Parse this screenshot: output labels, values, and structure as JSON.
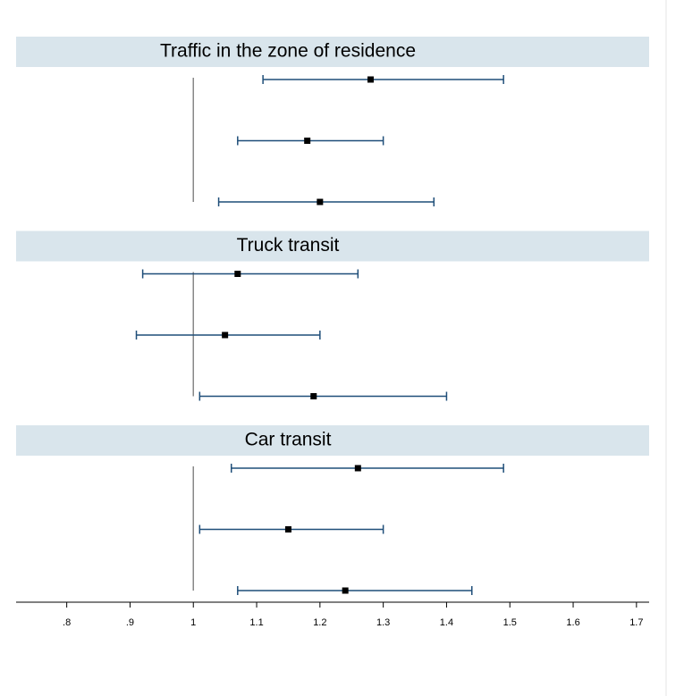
{
  "chart_data": {
    "type": "forest",
    "xlim": [
      0.72,
      1.72
    ],
    "xticks": [
      {
        "value": 0.8,
        "label": ".8"
      },
      {
        "value": 0.9,
        "label": ".9"
      },
      1,
      1.1,
      1.2,
      1.3,
      1.4,
      1.5,
      1.6,
      1.7
    ],
    "reference_line": 1,
    "color": "#1f4e79",
    "panels": [
      {
        "title": "Traffic in the zone of residence",
        "values": [
          1.28,
          1.18,
          1.2
        ],
        "lower": [
          1.11,
          1.07,
          1.04
        ],
        "upper": [
          1.49,
          1.3,
          1.38
        ]
      },
      {
        "title": "Truck transit",
        "values": [
          1.07,
          1.05,
          1.19
        ],
        "lower": [
          0.92,
          0.91,
          1.01
        ],
        "upper": [
          1.26,
          1.2,
          1.4
        ]
      },
      {
        "title": "Car transit",
        "values": [
          1.26,
          1.15,
          1.24
        ],
        "lower": [
          1.06,
          1.01,
          1.07
        ],
        "upper": [
          1.49,
          1.3,
          1.44
        ]
      }
    ]
  }
}
